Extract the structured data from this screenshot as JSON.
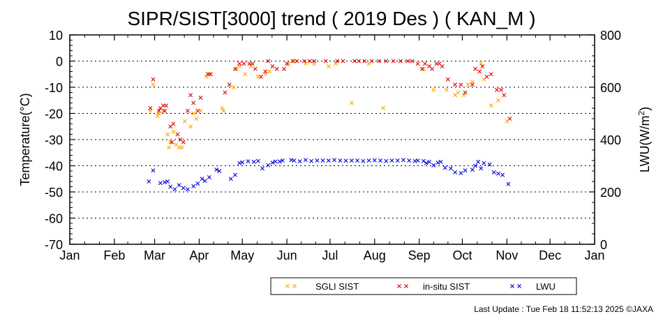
{
  "chart_data": {
    "type": "scatter",
    "title": "SIPR/SIST[3000] trend ( 2019 Des ) ( KAN_M )",
    "ylabel": "Temperature(°C)",
    "y2label_main": "LWU(W/m",
    "y2label_sup": "2",
    "y2label_end": ")",
    "ylim": [
      -70,
      10
    ],
    "y2lim": [
      0,
      800
    ],
    "xlim": [
      0,
      365
    ],
    "y_ticks": [
      "10",
      "0",
      "-10",
      "-20",
      "-30",
      "-40",
      "-50",
      "-60",
      "-70"
    ],
    "y2_ticks": [
      "800",
      "600",
      "400",
      "200",
      "0"
    ],
    "x_tick_days": [
      0,
      31,
      59,
      90,
      120,
      151,
      181,
      212,
      243,
      273,
      304,
      334,
      365
    ],
    "x_tick_labels": [
      "Jan",
      "Feb",
      "Mar",
      "Apr",
      "May",
      "Jun",
      "Jul",
      "Aug",
      "Sep",
      "Oct",
      "Nov",
      "Dec",
      "Jan"
    ],
    "grid": "dotted horizontal",
    "legend_position": "bottom-right",
    "series": [
      {
        "name": "SGLI SIST",
        "color": "#ffa500",
        "axis": "left",
        "points": [
          [
            56,
            -19
          ],
          [
            58,
            -9
          ],
          [
            61,
            -21
          ],
          [
            62,
            -20
          ],
          [
            65,
            -19
          ],
          [
            68,
            -28
          ],
          [
            69,
            -33
          ],
          [
            70,
            -31
          ],
          [
            72,
            -27
          ],
          [
            74,
            -32
          ],
          [
            76,
            -33
          ],
          [
            78,
            -33
          ],
          [
            80,
            -23
          ],
          [
            84,
            -25
          ],
          [
            86,
            -20
          ],
          [
            88,
            -22
          ],
          [
            91,
            -19
          ],
          [
            95,
            -6
          ],
          [
            97,
            -5
          ],
          [
            106,
            -18
          ],
          [
            107,
            -19
          ],
          [
            114,
            -10
          ],
          [
            116,
            -3
          ],
          [
            118,
            -2
          ],
          [
            122,
            -5
          ],
          [
            126,
            -2
          ],
          [
            131,
            -6
          ],
          [
            136,
            -5
          ],
          [
            139,
            -4
          ],
          [
            152,
            -1
          ],
          [
            156,
            0
          ],
          [
            164,
            -1
          ],
          [
            170,
            -1
          ],
          [
            180,
            -2
          ],
          [
            185,
            -1
          ],
          [
            196,
            -16
          ],
          [
            208,
            -1
          ],
          [
            218,
            -18
          ],
          [
            246,
            -3
          ],
          [
            253,
            -11
          ],
          [
            262,
            -11
          ],
          [
            268,
            -13
          ],
          [
            270,
            -12
          ],
          [
            274,
            -13
          ],
          [
            277,
            -9
          ],
          [
            280,
            -8
          ],
          [
            286,
            -1
          ],
          [
            288,
            -7
          ],
          [
            293,
            -17
          ],
          [
            298,
            -15
          ],
          [
            304,
            -23
          ]
        ]
      },
      {
        "name": "in-situ SIST",
        "color": "#e00000",
        "axis": "left",
        "points": [
          [
            56,
            -18
          ],
          [
            58,
            -7
          ],
          [
            62,
            -19
          ],
          [
            63,
            -18
          ],
          [
            65,
            -17
          ],
          [
            66,
            -19
          ],
          [
            67,
            -17
          ],
          [
            70,
            -25
          ],
          [
            71,
            -31
          ],
          [
            72,
            -24
          ],
          [
            75,
            -28
          ],
          [
            77,
            -30
          ],
          [
            79,
            -31
          ],
          [
            82,
            -19
          ],
          [
            84,
            -13
          ],
          [
            86,
            -16
          ],
          [
            89,
            -19
          ],
          [
            91,
            -14
          ],
          [
            96,
            -5
          ],
          [
            98,
            -5
          ],
          [
            108,
            -12
          ],
          [
            111,
            -9
          ],
          [
            115,
            -3
          ],
          [
            118,
            -1
          ],
          [
            121,
            -1
          ],
          [
            125,
            -1
          ],
          [
            127,
            -1
          ],
          [
            129,
            -3
          ],
          [
            133,
            -6
          ],
          [
            136,
            -4
          ],
          [
            138,
            0
          ],
          [
            141,
            -2
          ],
          [
            144,
            -3
          ],
          [
            149,
            -3
          ],
          [
            151,
            -1
          ],
          [
            155,
            0
          ],
          [
            158,
            0
          ],
          [
            163,
            0
          ],
          [
            167,
            0
          ],
          [
            170,
            0
          ],
          [
            178,
            0
          ],
          [
            186,
            0
          ],
          [
            190,
            0
          ],
          [
            198,
            0
          ],
          [
            201,
            0
          ],
          [
            205,
            0
          ],
          [
            210,
            0
          ],
          [
            215,
            0
          ],
          [
            220,
            0
          ],
          [
            225,
            0
          ],
          [
            230,
            0
          ],
          [
            235,
            0
          ],
          [
            238,
            0
          ],
          [
            242,
            -1
          ],
          [
            245,
            -3
          ],
          [
            247,
            -1
          ],
          [
            250,
            -2
          ],
          [
            252,
            -3
          ],
          [
            255,
            -1
          ],
          [
            257,
            -1
          ],
          [
            259,
            -2
          ],
          [
            263,
            -7
          ],
          [
            268,
            -9
          ],
          [
            272,
            -9
          ],
          [
            275,
            -12
          ],
          [
            280,
            -9
          ],
          [
            282,
            -3
          ],
          [
            285,
            -4
          ],
          [
            287,
            -2
          ],
          [
            290,
            -6
          ],
          [
            293,
            -5
          ],
          [
            297,
            -11
          ],
          [
            300,
            -11
          ],
          [
            302,
            -13
          ],
          [
            306,
            -22
          ]
        ]
      },
      {
        "name": "LWU",
        "color": "#0000dd",
        "axis": "right",
        "points": [
          [
            55,
            240
          ],
          [
            58,
            282
          ],
          [
            63,
            234
          ],
          [
            66,
            237
          ],
          [
            68,
            240
          ],
          [
            70,
            220
          ],
          [
            73,
            210
          ],
          [
            76,
            226
          ],
          [
            79,
            215
          ],
          [
            82,
            210
          ],
          [
            86,
            222
          ],
          [
            89,
            232
          ],
          [
            92,
            250
          ],
          [
            94,
            242
          ],
          [
            97,
            256
          ],
          [
            102,
            285
          ],
          [
            104,
            280
          ],
          [
            112,
            250
          ],
          [
            115,
            265
          ],
          [
            118,
            310
          ],
          [
            120,
            313
          ],
          [
            124,
            317
          ],
          [
            128,
            315
          ],
          [
            131,
            318
          ],
          [
            134,
            290
          ],
          [
            138,
            302
          ],
          [
            141,
            312
          ],
          [
            143,
            316
          ],
          [
            146,
            316
          ],
          [
            148,
            320
          ],
          [
            154,
            322
          ],
          [
            156,
            320
          ],
          [
            160,
            317
          ],
          [
            164,
            322
          ],
          [
            168,
            318
          ],
          [
            172,
            320
          ],
          [
            176,
            320
          ],
          [
            180,
            320
          ],
          [
            184,
            322
          ],
          [
            188,
            320
          ],
          [
            192,
            319
          ],
          [
            196,
            320
          ],
          [
            200,
            320
          ],
          [
            204,
            318
          ],
          [
            208,
            320
          ],
          [
            212,
            321
          ],
          [
            216,
            320
          ],
          [
            220,
            318
          ],
          [
            224,
            320
          ],
          [
            228,
            320
          ],
          [
            232,
            322
          ],
          [
            236,
            320
          ],
          [
            240,
            318
          ],
          [
            242,
            320
          ],
          [
            246,
            318
          ],
          [
            248,
            310
          ],
          [
            250,
            315
          ],
          [
            253,
            302
          ],
          [
            256,
            312
          ],
          [
            258,
            315
          ],
          [
            261,
            292
          ],
          [
            265,
            290
          ],
          [
            268,
            275
          ],
          [
            272,
            272
          ],
          [
            275,
            282
          ],
          [
            280,
            285
          ],
          [
            282,
            300
          ],
          [
            284,
            315
          ],
          [
            286,
            290
          ],
          [
            288,
            310
          ],
          [
            292,
            305
          ],
          [
            295,
            275
          ],
          [
            298,
            270
          ],
          [
            301,
            265
          ],
          [
            305,
            230
          ]
        ]
      }
    ]
  },
  "footer": {
    "last_update": "Last Update : Tue Feb 18 11:52:13 2025 ©JAXA"
  }
}
